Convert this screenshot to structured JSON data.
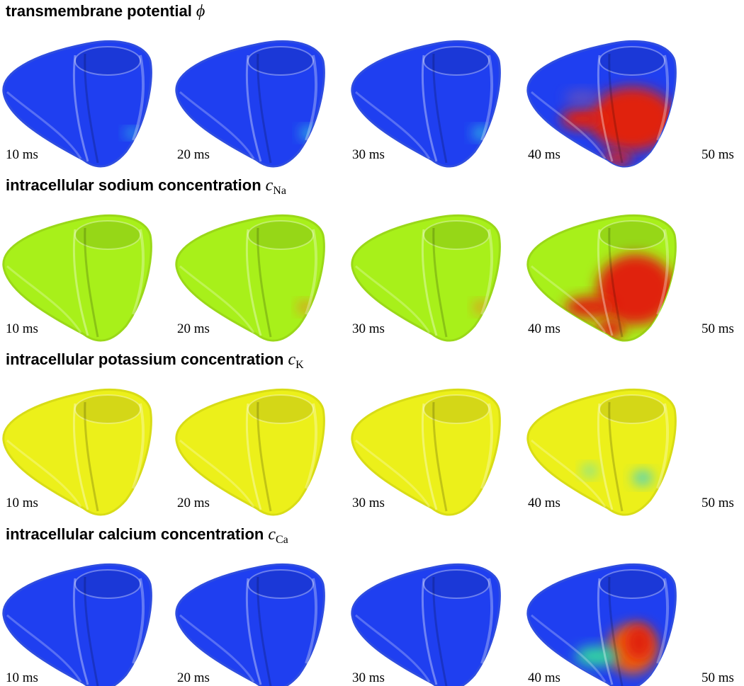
{
  "rows": [
    {
      "title": "transmembrane potential",
      "symbol": "ϕ",
      "labels": [
        "10 ms",
        "20 ms",
        "30 ms",
        "40 ms",
        "50 ms"
      ]
    },
    {
      "title": "intracellular sodium concentration",
      "symbol": "c",
      "subscript": "Na",
      "labels": [
        "10 ms",
        "20 ms",
        "30 ms",
        "40 ms",
        "50 ms"
      ]
    },
    {
      "title": "intracellular potassium concentration",
      "symbol": "c",
      "subscript": "K",
      "labels": [
        "10 ms",
        "20 ms",
        "30 ms",
        "40 ms",
        "50 ms"
      ]
    },
    {
      "title": "intracellular calcium concentration",
      "symbol": "c",
      "subscript": "Ca",
      "labels": [
        "10 ms",
        "20 ms",
        "30 ms",
        "40 ms",
        "50 ms"
      ]
    }
  ]
}
